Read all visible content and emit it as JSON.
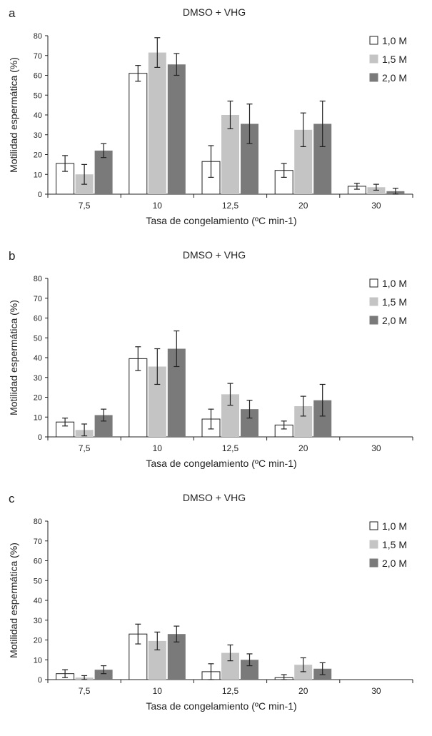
{
  "chart_data": [
    {
      "type": "bar",
      "panel_label": "a",
      "title": "DMSO + VHG",
      "categories": [
        "7,5",
        "10",
        "12,5",
        "20",
        "30"
      ],
      "xlabel": "Tasa de congelamiento (ºC min-1)",
      "ylabel": "Motilidad espermática (%)",
      "ylim": [
        0,
        80
      ],
      "yticks": [
        0,
        10,
        20,
        30,
        40,
        50,
        60,
        70,
        80
      ],
      "legend_position": "top-right",
      "grid": false,
      "series": [
        {
          "name": "1,0 M",
          "color": "#ffffff",
          "values": [
            15.5,
            61,
            16.5,
            12,
            4
          ],
          "errors": [
            4,
            4,
            8,
            3.5,
            1.5
          ]
        },
        {
          "name": "1,5 M",
          "color": "#c4c4c4",
          "values": [
            10,
            71.5,
            40,
            32.5,
            3.5
          ],
          "errors": [
            5,
            7.5,
            7,
            8.5,
            1.5
          ]
        },
        {
          "name": "2,0 M",
          "color": "#7a7a7a",
          "values": [
            22,
            65.5,
            35.5,
            35.5,
            1.5
          ],
          "errors": [
            3.5,
            5.5,
            10,
            11.5,
            1.5
          ]
        }
      ]
    },
    {
      "type": "bar",
      "panel_label": "b",
      "title": "DMSO + VHG",
      "categories": [
        "7,5",
        "10",
        "12,5",
        "20",
        "30"
      ],
      "xlabel": "Tasa de congelamiento (ºC min-1)",
      "ylabel": "Motilidad espermática (%)",
      "ylim": [
        0,
        80
      ],
      "yticks": [
        0,
        10,
        20,
        30,
        40,
        50,
        60,
        70,
        80
      ],
      "legend_position": "top-right",
      "grid": false,
      "series": [
        {
          "name": "1,0 M",
          "color": "#ffffff",
          "values": [
            7.5,
            39.5,
            9,
            6,
            0
          ],
          "errors": [
            2,
            6,
            5,
            2,
            0
          ]
        },
        {
          "name": "1,5 M",
          "color": "#c4c4c4",
          "values": [
            3.5,
            35.5,
            21.5,
            15.5,
            0
          ],
          "errors": [
            3,
            9,
            5.5,
            5,
            0
          ]
        },
        {
          "name": "2,0 M",
          "color": "#7a7a7a",
          "values": [
            11,
            44.5,
            14,
            18.5,
            0
          ],
          "errors": [
            3,
            9,
            4.5,
            8,
            0
          ]
        }
      ]
    },
    {
      "type": "bar",
      "panel_label": "c",
      "title": "DMSO + VHG",
      "categories": [
        "7,5",
        "10",
        "12,5",
        "20",
        "30"
      ],
      "xlabel": "Tasa de congelamiento (ºC min-1)",
      "ylabel": "Motilidad espermática (%)",
      "ylim": [
        0,
        80
      ],
      "yticks": [
        0,
        10,
        20,
        30,
        40,
        50,
        60,
        70,
        80
      ],
      "legend_position": "top-right",
      "grid": false,
      "series": [
        {
          "name": "1,0 M",
          "color": "#ffffff",
          "values": [
            3,
            23,
            4,
            1,
            0
          ],
          "errors": [
            2,
            5,
            4,
            1.5,
            0
          ]
        },
        {
          "name": "1,5 M",
          "color": "#c4c4c4",
          "values": [
            1,
            19.5,
            13.5,
            7.5,
            0
          ],
          "errors": [
            1,
            4.5,
            4,
            3.5,
            0
          ]
        },
        {
          "name": "2,0 M",
          "color": "#7a7a7a",
          "values": [
            5,
            23,
            10,
            5.5,
            0
          ],
          "errors": [
            2,
            4,
            3,
            3,
            0
          ]
        }
      ]
    }
  ]
}
